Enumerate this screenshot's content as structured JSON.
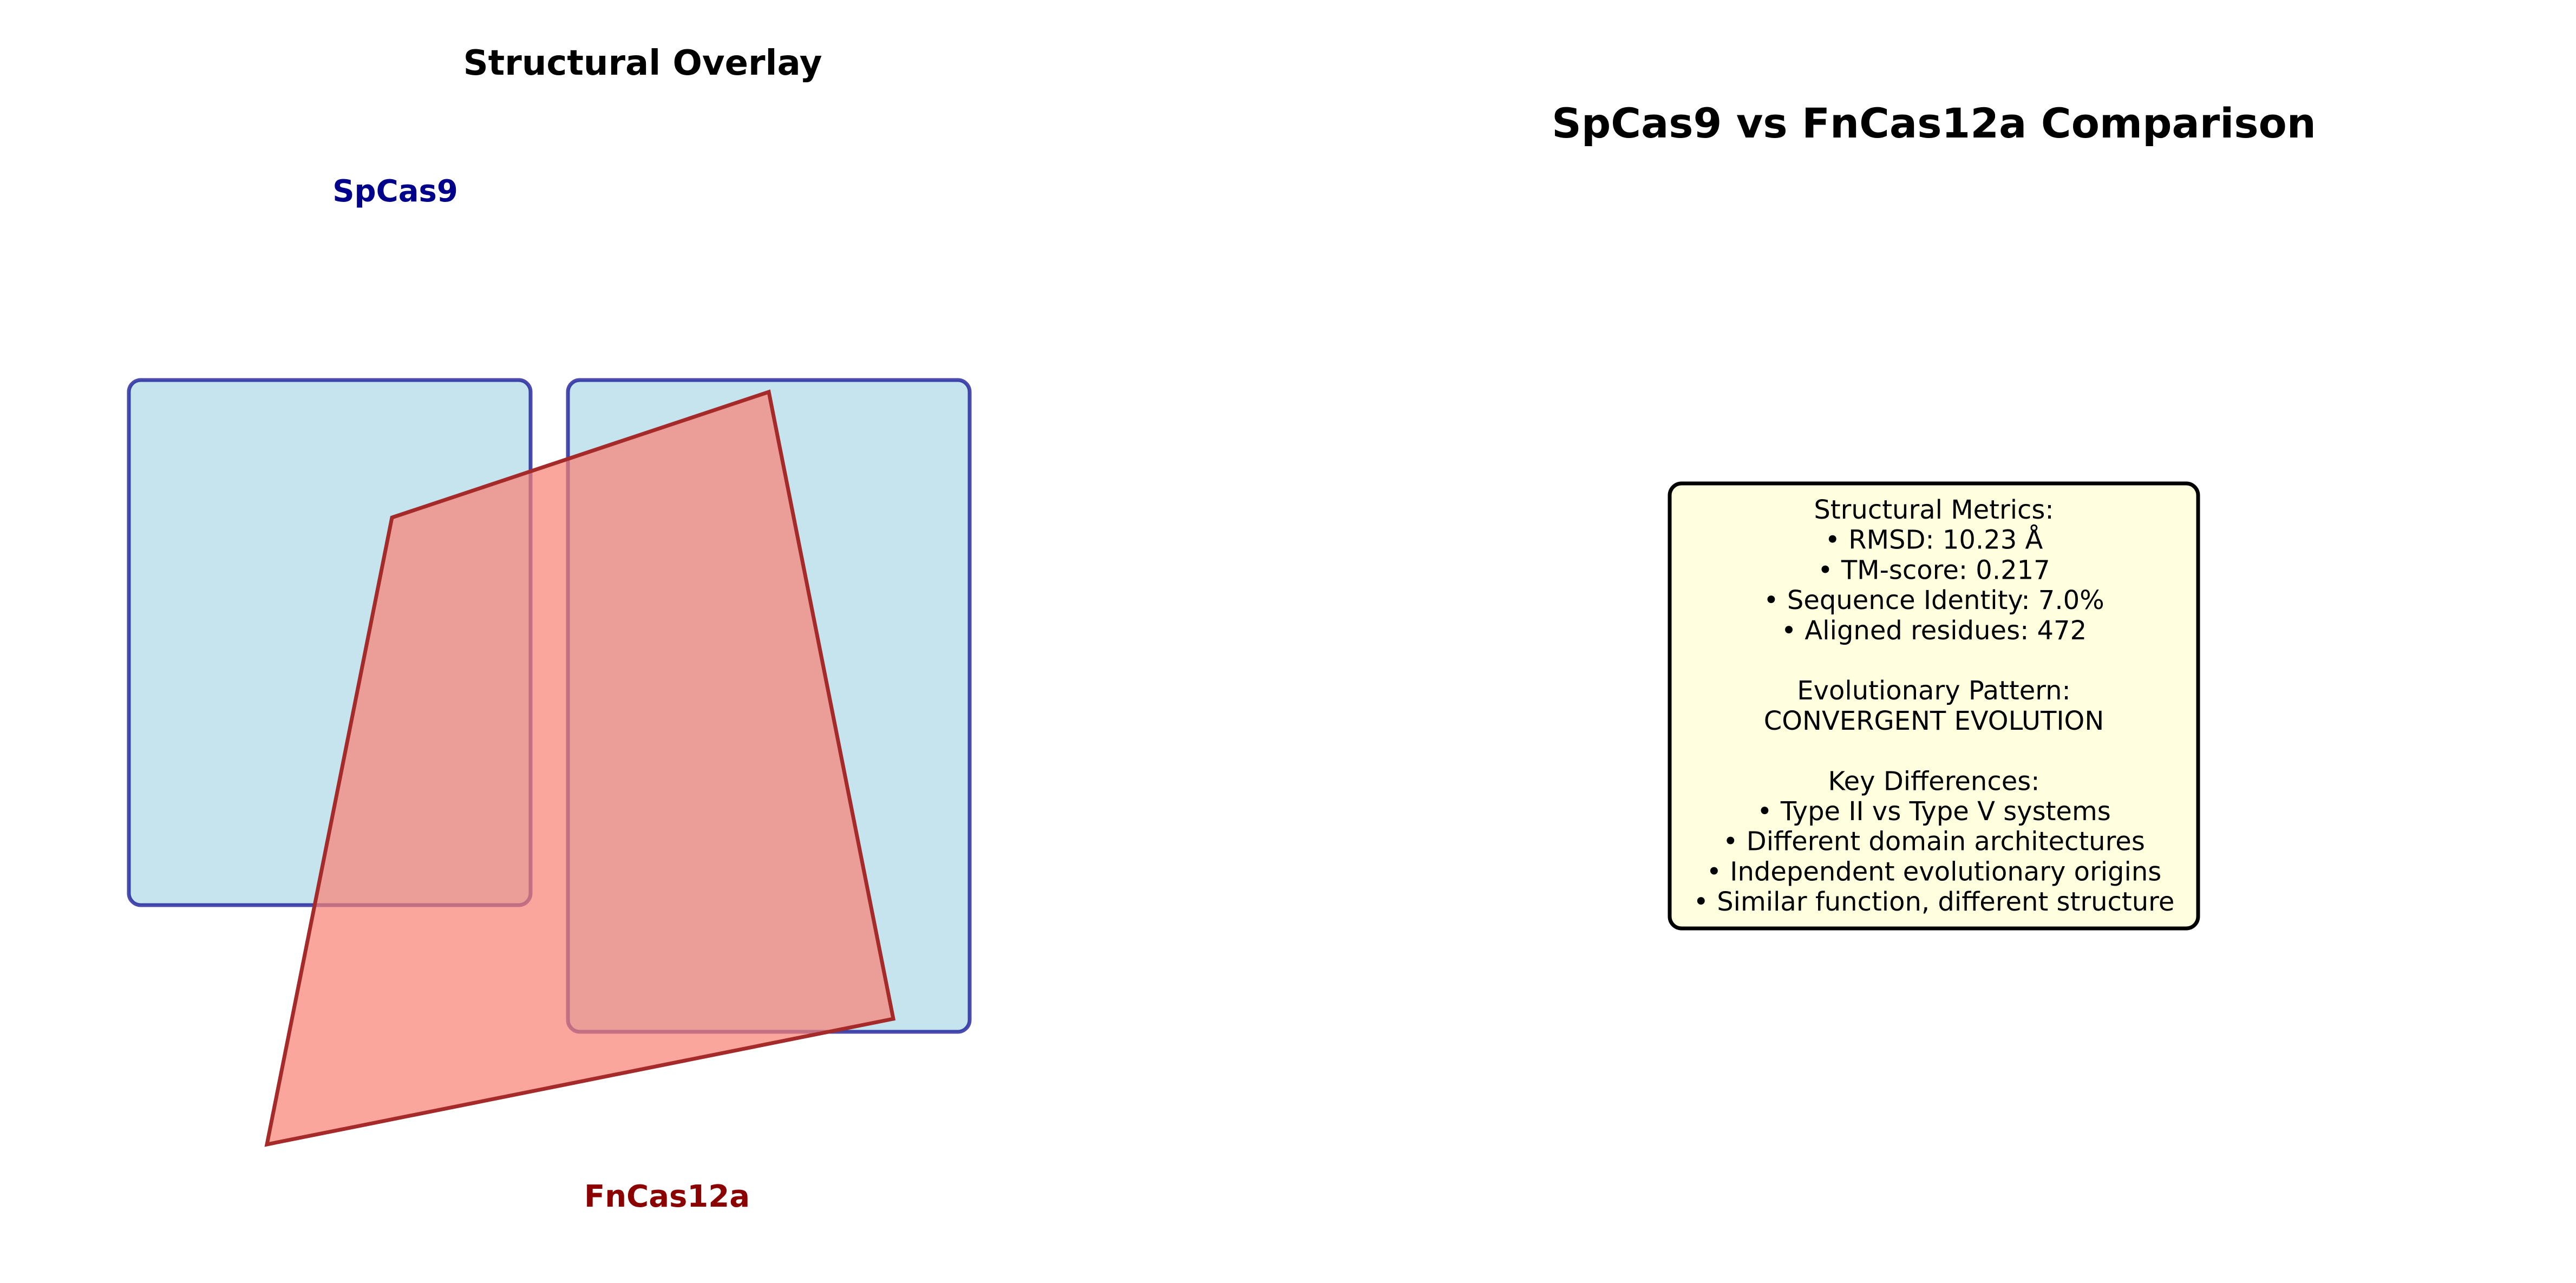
{
  "left_panel": {
    "title": "Structural Overlay",
    "protein_a": {
      "label": "SpCas9",
      "label_color": "#00008b",
      "fill_color": "#add8e6",
      "stroke_color": "#00008b"
    },
    "protein_b": {
      "label": "FnCas12a",
      "label_color": "#8b0000",
      "fill_color": "#fa8072",
      "stroke_color": "#a52a2a"
    }
  },
  "right_panel": {
    "title": "SpCas9 vs FnCas12a Comparison",
    "box_fill_color": "#ffffe0",
    "lines": [
      "Structural Metrics:",
      "• RMSD: 10.23 Å",
      "• TM-score: 0.217",
      "• Sequence Identity: 7.0%",
      "• Aligned residues: 472",
      "",
      "Evolutionary Pattern:",
      "CONVERGENT EVOLUTION",
      "",
      "Key Differences:",
      "• Type II vs Type V systems",
      "• Different domain architectures",
      "• Independent evolutionary origins",
      "• Similar function, different structure"
    ]
  }
}
